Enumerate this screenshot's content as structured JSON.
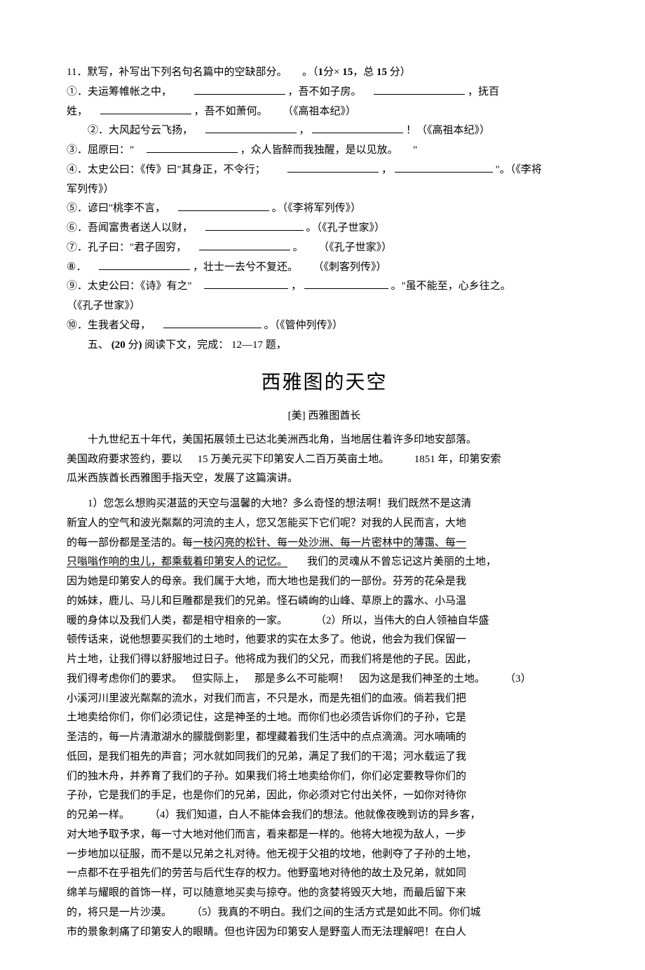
{
  "q11": {
    "head_a": "11．默写，补写出下列名句名篇中的空缺部分。",
    "head_b": "。（",
    "head_c_bold": "1",
    "head_d": "分×",
    "head_e_bold": "15",
    "head_f": "，总",
    "head_g_bold": " 15 ",
    "head_h": "分）",
    "l1a": "①．夫运筹帷帐之中，",
    "l1b": "，吾不如子房。",
    "l1c": "，抚百",
    "l1d": "姓，",
    "l1e": "，吾不如萧何。",
    "l1f": "（《高祖本纪》）",
    "l2a": "②．大风起兮云飞扬，",
    "l2b": "，",
    "l2c": "！（《高祖本纪》）",
    "l3a": "③．屈原曰：\"",
    "l3b": "，众人皆醉而我独醒，是以见放。",
    "l3c": "\"",
    "l4a": "④．太史公曰：《传》曰\"其身正，不令行；",
    "l4b": "，",
    "l4c": "\"。（《李将",
    "l4d": "军列传》）",
    "l5a": "⑤．谚曰\"桃李不言，",
    "l5b": "。（《李将军列传》）",
    "l6a": "⑥．吾闻富贵者送人以财，",
    "l6b": "。（《孔子世家》）",
    "l7a": "⑦．孔子曰：\"君子固穷，",
    "l7b": "。",
    "l7c": "（《孔子世家》）",
    "l8a": "⑧．",
    "l8b": "，壮士一去兮不复还。",
    "l8c": "（《刺客列传》）",
    "l9a": "⑨．太史公曰：《诗》有之\"",
    "l9b": "，",
    "l9c": "。\"虽不能至，心乡往之。",
    "l9d": "（《孔子世家》）",
    "l10a": "⑩．生我者父母，",
    "l10b": "。（《管仲列传》）"
  },
  "sec5": {
    "a": "五、",
    "b_bold": "(20",
    "c": "分",
    "d_bold": ")",
    "e": " 阅读下文，完成：",
    "f": " 12—17 题，"
  },
  "title": "西雅图的天空",
  "author": "[美]  西雅图酋长",
  "intro": {
    "p1": "十九世纪五十年代，美国拓展领土已达北美洲西北角，当地居住着许多印地安部落。",
    "p2a": "美国政府要求签约，要以",
    "p2b": " 15 万美元买下印第安人二百万英亩土地。",
    "p2c": " 1851 年，印第安索",
    "p3": "瓜米西族酋长西雅图手指天空，发展了这篇演讲。"
  },
  "essay": {
    "s1a": "1）您怎么想购买湛蓝的天空与温馨的大地？多么奇怪的想法啊！我们既然不是这清",
    "s1b": "新宜人的空气和波光粼粼的河流的主人，您又怎能买下它们呢？对我的人民而言，大地",
    "s1c": "的每一部份都是圣洁的。每",
    "u1": "一枝闪亮的松针、每一处沙洲、每一片密林中的薄霭、每一",
    "u2": "只嗡嗡作响的虫儿，都乘载着印第安人的记忆。",
    "s1d": "我们的灵魂从不曾忘记这片美丽的土地，",
    "s1e": "因为她是印第安人的母亲。我们属于大地，而大地也是我们的一部份。芬芳的花朵是我",
    "s1f": "的姊妹，鹿儿、马儿和巨雕都是我们的兄弟。怪石嶙峋的山峰、草原上的露水、小马温",
    "s1g": "暖的身体以及我们人类，都是相守相亲的一家。",
    "s2t": "（2）所以，当伟大的白人领袖自华盛",
    "s2a": "顿传话来，说他想要买我们的土地时，他要求的实在太多了。他说，他会为我们保留一",
    "s2b": "片土地，让我们得以舒服地过日子。他将成为我们的父兄，而我们将是他的子民。因此，",
    "s2c": "我们得考虑你们的要求。",
    "s2d": "但实际上，",
    "s2e": "那是多么不可能啊！",
    "s2f": "因为这是我们神圣的土地。",
    "s3t": "（3）",
    "s3a": "小溪河川里波光粼粼的流水，对我们而言，不只是水，而是先祖们的血液。倘若我们把",
    "s3b": "土地卖给你们，你们必须记住，这是神圣的土地。而你们也必须告诉你们的子孙，它是",
    "s3c": "圣洁的，每一片清澈湖水的朦胧倒影里，都埋藏着我们生活中的点点滴滴。河水喃喃的",
    "s3d": "低回，是我们祖先的声音；河水就如同我们的兄弟，满足了我们的干渴；河水载运了我",
    "s3e": "们的独木舟，并养育了我们的子孙。如果我们将土地卖给你们，你们必定要教导你们的",
    "s3f": "子孙，它是我们的手足，也是你们的兄弟，因此，你必须对它付出关怀，一如你对待你",
    "s3g": "的兄弟一样。",
    "s4t": "（4）我们知道，白人不能体会我们的想法。他就像夜晚到访的异乡客，",
    "s4a": "对大地予取予求，每一寸大地对他们而言，看来都是一样的。他将大地视为敌人，一步",
    "s4b": "一步地加以征服，而不是以兄弟之礼对待。他无视于父祖的坟地，他剥夺了子孙的土地，",
    "s4c": "一点都不在乎祖先们的劳苦与后代生存的权力。他野蛮地对待他的故土及兄弟，就如同",
    "s4d": "绵羊与耀眼的首饰一样，可以随意地买卖与掠夺。他的贪婪将毁灭大地，而最后留下来",
    "s4e": "的，将只是一片沙漠。",
    "s5t": "（5）我真的不明白。我们之间的生活方式是如此不同。你们城",
    "s5a": "市的景象刺痛了印第安人的眼睛。但也许因为印第安人是野蛮人而无法理解吧！在白人"
  }
}
